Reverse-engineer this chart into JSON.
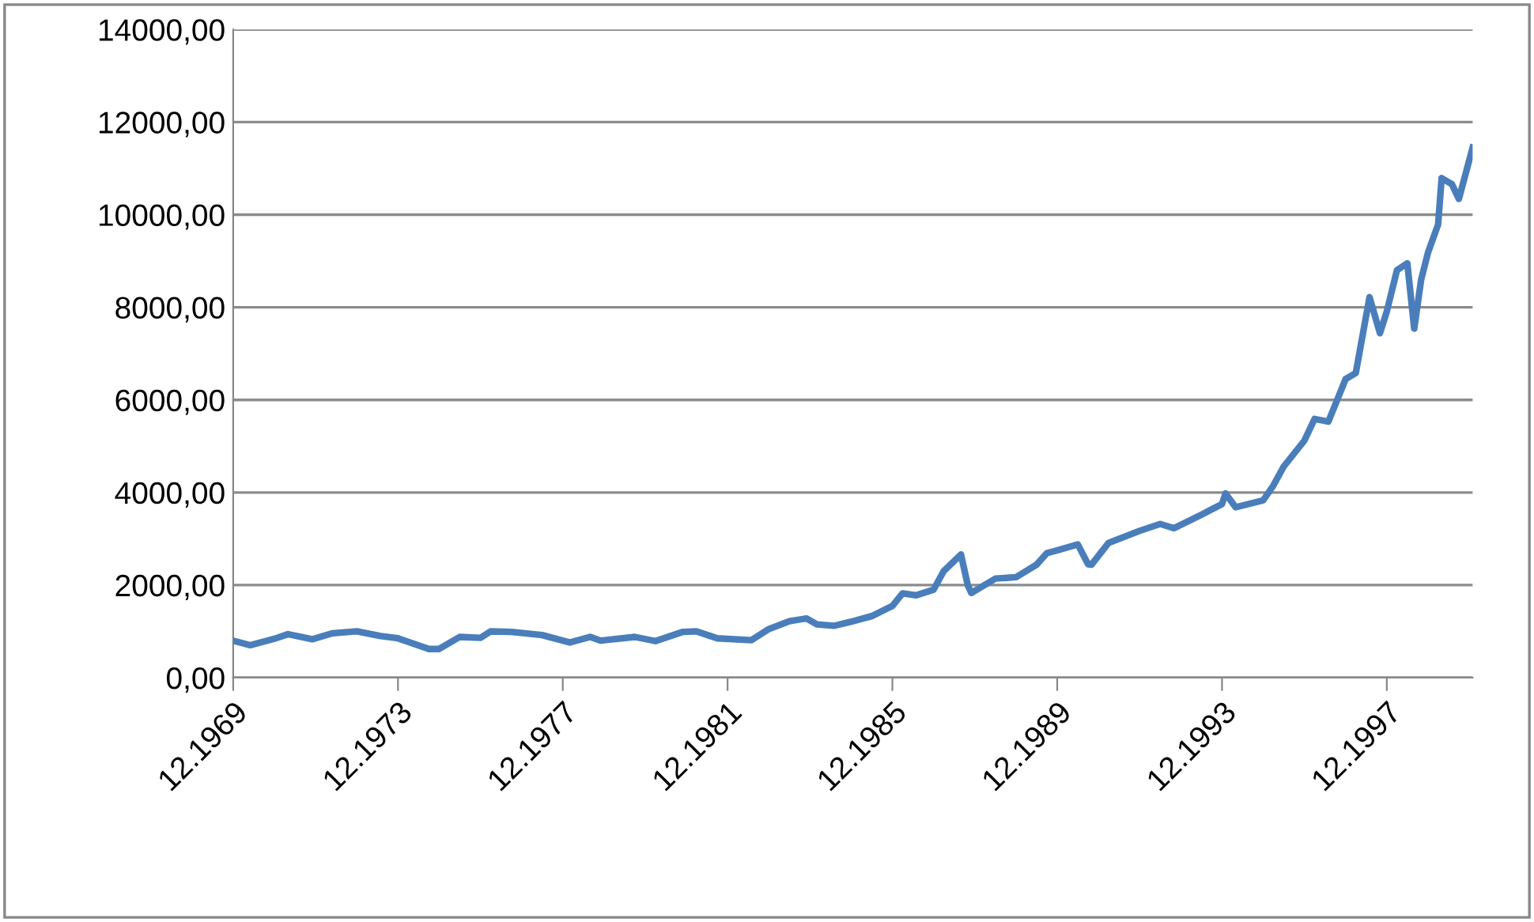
{
  "chart_data": {
    "type": "line",
    "x": [
      "1969-12",
      "1970-05",
      "1970-12",
      "1971-04",
      "1971-11",
      "1972-05",
      "1972-12",
      "1973-07",
      "1973-12",
      "1974-09",
      "1974-12",
      "1975-06",
      "1975-12",
      "1976-03",
      "1976-09",
      "1977-06",
      "1978-02",
      "1978-08",
      "1978-11",
      "1979-09",
      "1980-03",
      "1980-11",
      "1981-03",
      "1981-09",
      "1982-07",
      "1982-12",
      "1983-06",
      "1983-11",
      "1984-02",
      "1984-07",
      "1984-12",
      "1985-06",
      "1985-12",
      "1986-03",
      "1986-07",
      "1986-12",
      "1987-03",
      "1987-08",
      "1987-10",
      "1987-11",
      "1988-06",
      "1988-12",
      "1989-06",
      "1989-09",
      "1989-12",
      "1990-06",
      "1990-09",
      "1990-10",
      "1991-03",
      "1991-12",
      "1992-06",
      "1992-10",
      "1993-06",
      "1993-12",
      "1994-01",
      "1994-04",
      "1994-12",
      "1995-03",
      "1995-06",
      "1995-12",
      "1996-03",
      "1996-07",
      "1996-12",
      "1997-03",
      "1997-07",
      "1997-10",
      "1997-12",
      "1998-03",
      "1998-06",
      "1998-08",
      "1998-10",
      "1998-12",
      "1999-03",
      "1999-04",
      "1999-07",
      "1999-09",
      "2000-01"
    ],
    "series": [
      {
        "color": "#4a7ebb",
        "values": [
          800,
          700,
          840,
          940,
          830,
          960,
          1000,
          900,
          850,
          620,
          620,
          880,
          860,
          1000,
          990,
          920,
          760,
          880,
          800,
          880,
          790,
          990,
          1000,
          850,
          810,
          1050,
          1220,
          1280,
          1150,
          1120,
          1210,
          1330,
          1550,
          1820,
          1780,
          1900,
          2300,
          2660,
          1990,
          1830,
          2140,
          2170,
          2440,
          2690,
          2750,
          2880,
          2450,
          2440,
          2910,
          3170,
          3320,
          3230,
          3520,
          3750,
          3980,
          3680,
          3830,
          4150,
          4560,
          5120,
          5590,
          5530,
          6450,
          6580,
          8220,
          7440,
          7910,
          8800,
          8950,
          7540,
          8590,
          9180,
          9790,
          10790,
          10660,
          10340,
          11450
        ]
      }
    ],
    "xlim": [
      "1969-12",
      "2000-01"
    ],
    "xticks": [
      {
        "value": "1969-12",
        "label": "12.1969"
      },
      {
        "value": "1973-12",
        "label": "12.1973"
      },
      {
        "value": "1977-12",
        "label": "12.1977"
      },
      {
        "value": "1981-12",
        "label": "12.1981"
      },
      {
        "value": "1985-12",
        "label": "12.1985"
      },
      {
        "value": "1989-12",
        "label": "12.1989"
      },
      {
        "value": "1993-12",
        "label": "12.1993"
      },
      {
        "value": "1997-12",
        "label": "12.1997"
      }
    ],
    "ylim": [
      0,
      14000
    ],
    "yticks": [
      {
        "value": 0,
        "label": "0,00"
      },
      {
        "value": 2000,
        "label": "2000,00"
      },
      {
        "value": 4000,
        "label": "4000,00"
      },
      {
        "value": 6000,
        "label": "6000,00"
      },
      {
        "value": 8000,
        "label": "8000,00"
      },
      {
        "value": 10000,
        "label": "10000,00"
      },
      {
        "value": 12000,
        "label": "12000,00"
      },
      {
        "value": 14000,
        "label": "14000,00"
      }
    ],
    "grid": "y",
    "legend": false,
    "marker": "none",
    "line_style": "solid"
  }
}
